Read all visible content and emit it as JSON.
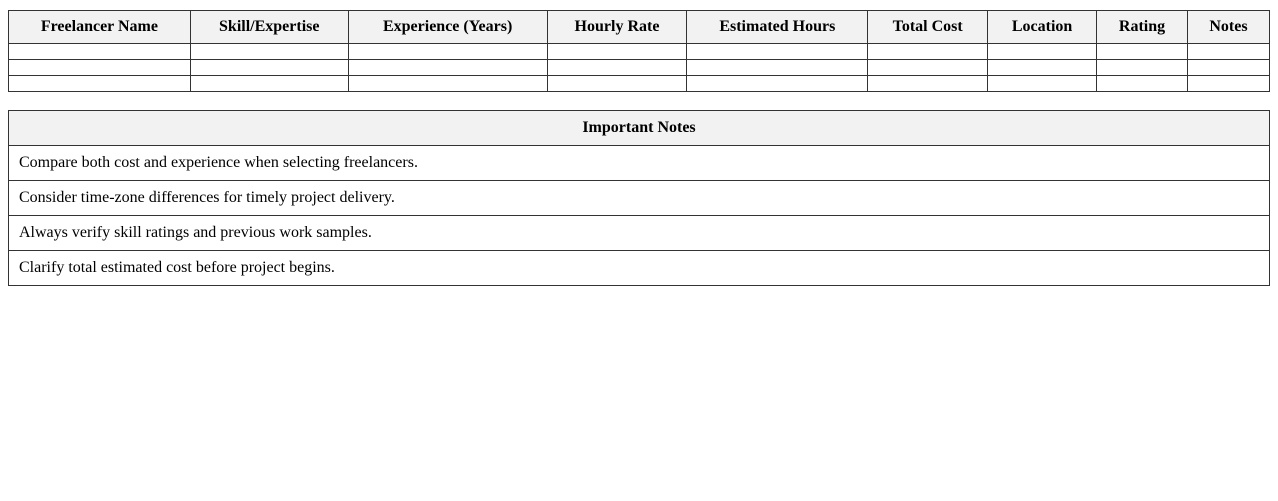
{
  "colors": {
    "header_bg": "#f2f2f2",
    "border": "#333333",
    "text": "#000000",
    "page_bg": "#ffffff"
  },
  "freelancer_table": {
    "columns": [
      "Freelancer Name",
      "Skill/Expertise",
      "Experience (Years)",
      "Hourly Rate",
      "Estimated Hours",
      "Total Cost",
      "Location",
      "Rating",
      "Notes"
    ],
    "column_width_percents": [
      14.42,
      12.52,
      15.77,
      11.09,
      14.34,
      9.51,
      8.64,
      7.21,
      6.5
    ],
    "rows": [
      [
        "",
        "",
        "",
        "",
        "",
        "",
        "",
        "",
        ""
      ],
      [
        "",
        "",
        "",
        "",
        "",
        "",
        "",
        "",
        ""
      ],
      [
        "",
        "",
        "",
        "",
        "",
        "",
        "",
        "",
        ""
      ]
    ]
  },
  "notes_table": {
    "title": "Important Notes",
    "items": [
      "Compare both cost and experience when selecting freelancers.",
      "Consider time-zone differences for timely project delivery.",
      "Always verify skill ratings and previous work samples.",
      "Clarify total estimated cost before project begins."
    ]
  }
}
